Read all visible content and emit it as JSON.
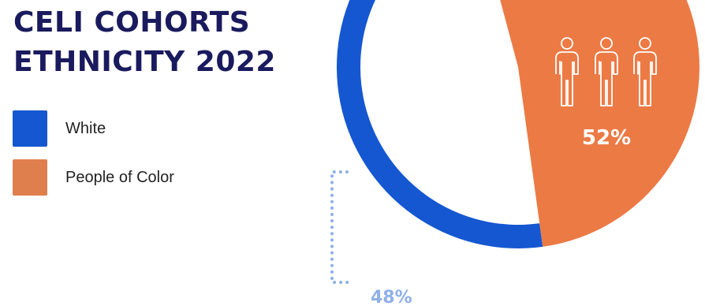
{
  "title_lines": [
    "CELI COHORTS",
    "ETHNICITY 2022"
  ],
  "legend": [
    {
      "label": "White",
      "color": "#1557d0"
    },
    {
      "label": "People of Color",
      "color": "#e07f4e"
    }
  ],
  "colors": {
    "title": "#1a1a5e",
    "white_slice": "#1557d0",
    "poc_slice": "#ec7a45",
    "callout": "#8fb0e8"
  },
  "icons": [
    "person-icon",
    "person-icon",
    "person-icon"
  ],
  "chart_data": {
    "type": "pie",
    "title": "CELI COHORTS ETHNICITY 2022",
    "slices": [
      {
        "name": "White",
        "value": 48,
        "label": "48%",
        "color": "#1557d0"
      },
      {
        "name": "People of Color",
        "value": 52,
        "label": "52%",
        "color": "#ec7a45"
      }
    ]
  }
}
